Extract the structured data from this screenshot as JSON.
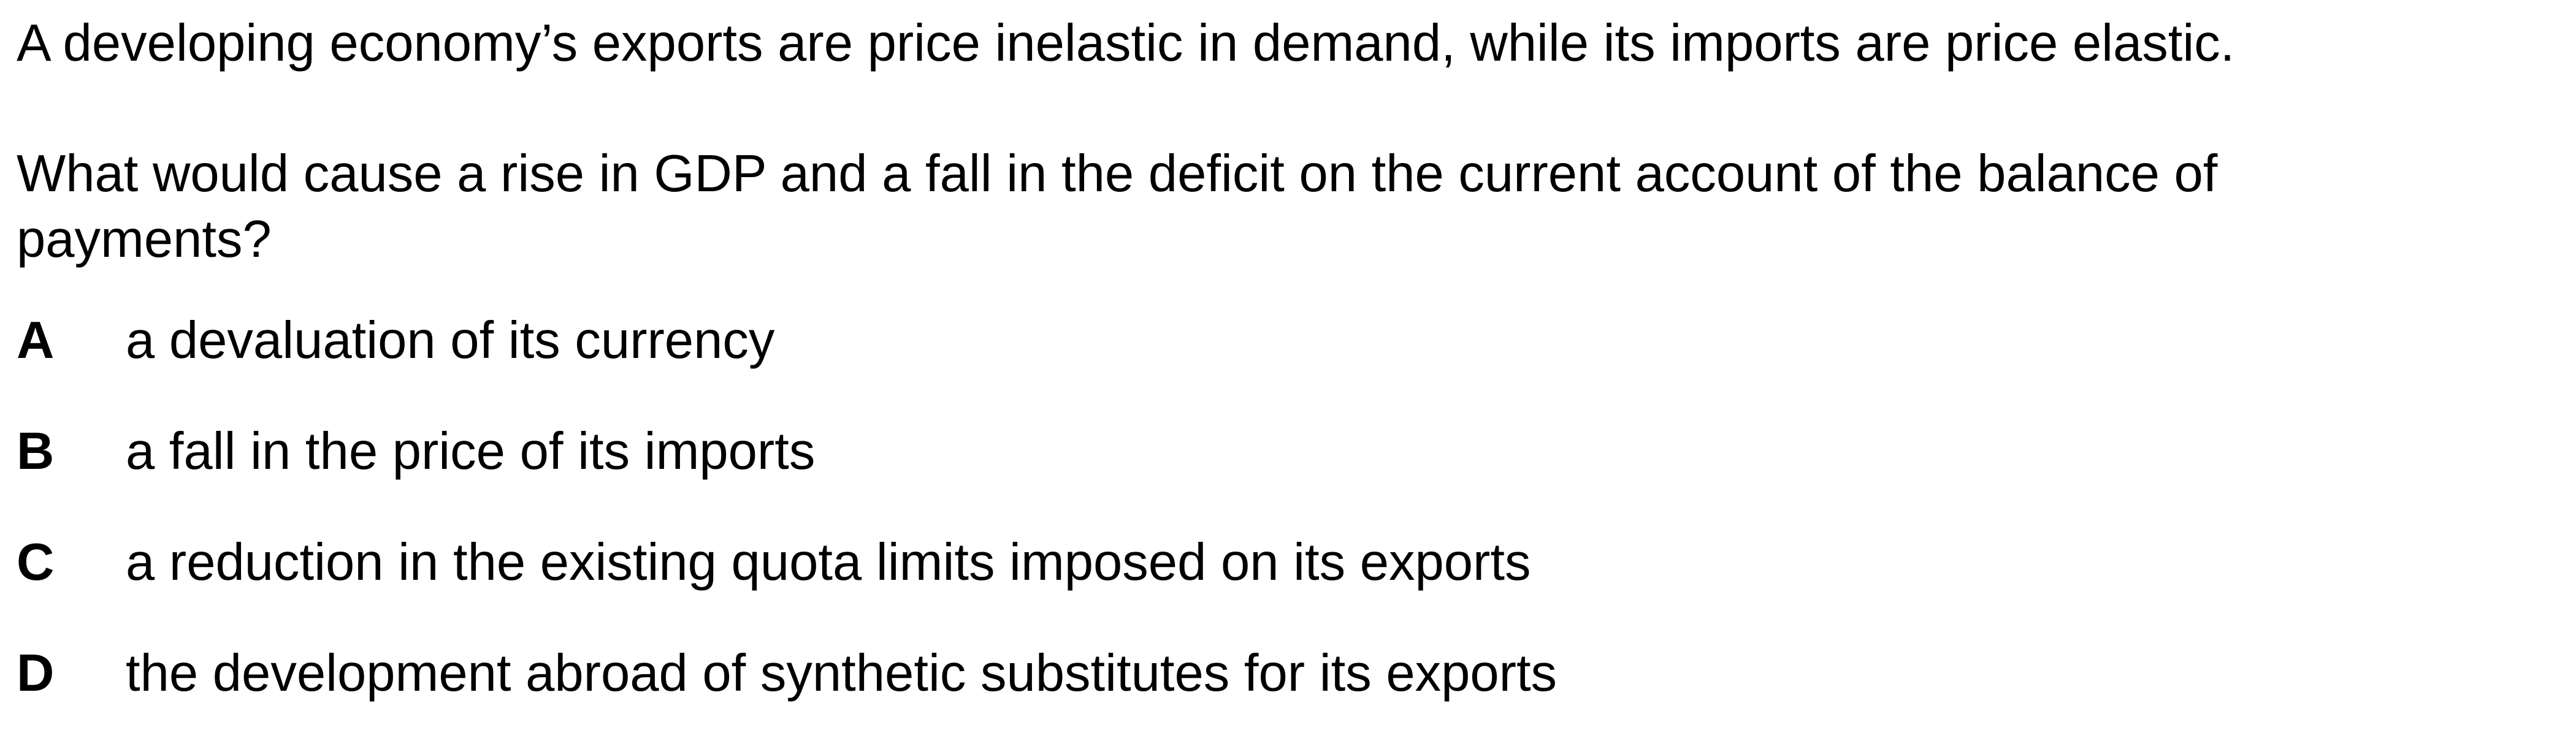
{
  "question": {
    "intro": "A developing economy’s exports are price inelastic in demand, while its imports are price elastic.",
    "prompt_line1": "What would cause a rise in GDP and a fall in the deficit on the current account of the balance of",
    "prompt_line2": "payments?"
  },
  "options": [
    {
      "letter": "A",
      "text": "a devaluation of its currency"
    },
    {
      "letter": "B",
      "text": "a fall in the price of its imports"
    },
    {
      "letter": "C",
      "text": "a reduction in the existing quota limits imposed on its exports"
    },
    {
      "letter": "D",
      "text": "the development abroad of synthetic substitutes for its exports"
    }
  ]
}
